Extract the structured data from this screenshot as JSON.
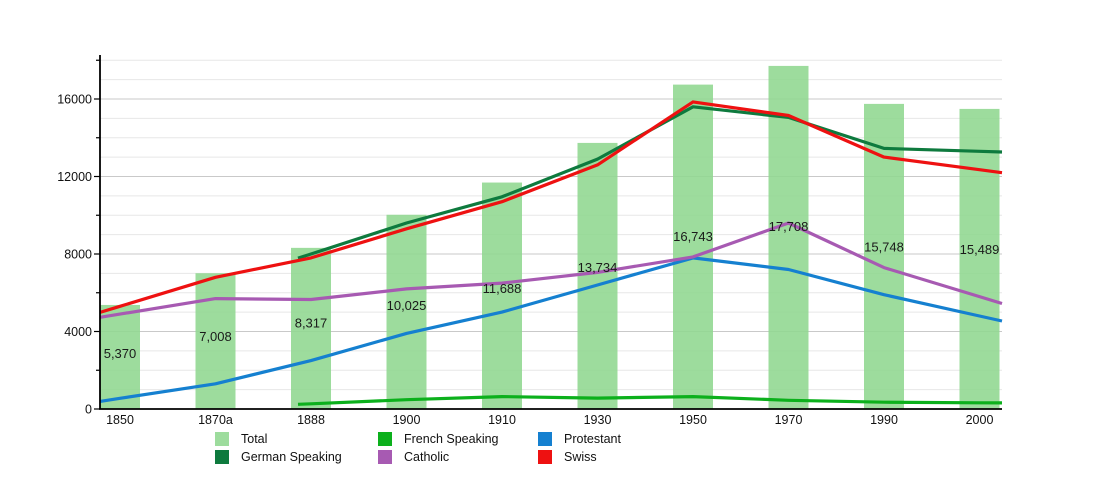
{
  "chart_data": {
    "type": "combo-bar-line",
    "title": "",
    "categories": [
      "1850",
      "1870a",
      "1888",
      "1900",
      "1910",
      "1930",
      "1950",
      "1970",
      "1990",
      "2000"
    ],
    "bar_series": {
      "name": "Total",
      "color": "#9ddc9d",
      "values": [
        5370,
        7008,
        8317,
        10025,
        11688,
        13734,
        16743,
        17708,
        15748,
        15489
      ],
      "labels": [
        "5,370",
        "7,008",
        "8,317",
        "10,025",
        "11,688",
        "13,734",
        "16,743",
        "17,708",
        "15,748",
        "15,489"
      ]
    },
    "line_series": [
      {
        "name": "German Speaking",
        "color": "#0e7a3e",
        "values": [
          null,
          null,
          8000,
          9600,
          10950,
          12900,
          15600,
          15050,
          13450,
          13300
        ]
      },
      {
        "name": "French Speaking",
        "color": "#0cb01c",
        "values": [
          null,
          null,
          270,
          480,
          640,
          560,
          640,
          450,
          350,
          320
        ]
      },
      {
        "name": "Protestant",
        "color": "#1580d0",
        "values": [
          550,
          1300,
          2500,
          3900,
          5000,
          6400,
          7800,
          7200,
          5900,
          4800
        ]
      },
      {
        "name": "Catholic",
        "color": "#a75ab2",
        "values": [
          4900,
          5700,
          5650,
          6200,
          6500,
          7050,
          7850,
          9600,
          7300,
          5800
        ]
      },
      {
        "name": "Swiss",
        "color": "#ee1111",
        "values": [
          5300,
          6800,
          7800,
          9300,
          10700,
          12600,
          15850,
          15150,
          13000,
          12350
        ]
      }
    ],
    "y_axis": {
      "tick_labels": [
        "0",
        "4000",
        "8000",
        "12000",
        "16000"
      ],
      "tick_values": [
        0,
        4000,
        8000,
        12000,
        16000
      ],
      "minor_step": 1000,
      "ylim": [
        0,
        18400
      ]
    },
    "grid": "on",
    "legend_position": "bottom",
    "legend": {
      "columns": [
        [
          {
            "label": "Total",
            "color": "#9ddc9d"
          },
          {
            "label": "German Speaking",
            "color": "#0e7a3e"
          }
        ],
        [
          {
            "label": "French Speaking",
            "color": "#0cb01c"
          },
          {
            "label": "Catholic",
            "color": "#a75ab2"
          }
        ],
        [
          {
            "label": "Protestant",
            "color": "#1580d0"
          },
          {
            "label": "Swiss",
            "color": "#ee1111"
          }
        ]
      ]
    }
  }
}
